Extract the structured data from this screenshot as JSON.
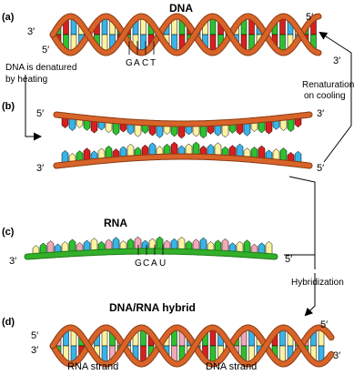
{
  "panel_labels": {
    "a": "(a)",
    "b": "(b)",
    "c": "(c)",
    "d": "(d)"
  },
  "titles": {
    "dna": "DNA",
    "rna": "RNA",
    "hybrid": "DNA/RNA hybrid"
  },
  "ends": {
    "three_prime": "3′",
    "five_prime": "5′"
  },
  "process_labels": {
    "denature_line1": "DNA is denatured",
    "denature_line2": "by heating",
    "renature_line1": "Renaturation",
    "renature_line2": "on cooling",
    "hybridization": "Hybridization"
  },
  "dna_bases": [
    "G",
    "A",
    "C",
    "T"
  ],
  "rna_bases": [
    "G",
    "C",
    "A",
    "U"
  ],
  "strand_labels": {
    "rna": "RNA strand",
    "dna": "DNA strand"
  },
  "colors": {
    "backbone": "#d8642a",
    "backbone_dark": "#8a3a10",
    "rna_backbone": "#33b02a",
    "base_green": "#2ec12e",
    "base_red": "#d81f1f",
    "base_blue": "#38b4e8",
    "base_yellow": "#fbf3a0",
    "base_pink": "#f1a9b8",
    "base_outline": "#000000"
  }
}
